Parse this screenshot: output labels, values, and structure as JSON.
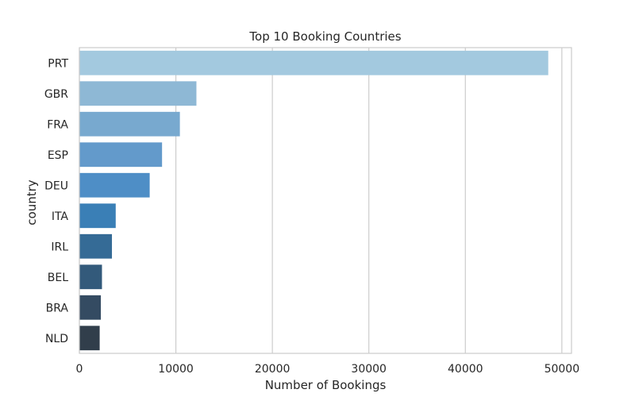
{
  "chart_data": {
    "type": "bar",
    "orientation": "horizontal",
    "title": "Top 10 Booking Countries",
    "xlabel": "Number of Bookings",
    "ylabel": "country",
    "categories": [
      "PRT",
      "GBR",
      "FRA",
      "ESP",
      "DEU",
      "ITA",
      "IRL",
      "BEL",
      "BRA",
      "NLD"
    ],
    "values": [
      48590,
      12129,
      10415,
      8568,
      7287,
      3766,
      3375,
      2342,
      2224,
      2104
    ],
    "xlim": [
      0,
      51000
    ],
    "xticks": [
      0,
      10000,
      20000,
      30000,
      40000,
      50000
    ],
    "xtick_labels": [
      "0",
      "10000",
      "20000",
      "30000",
      "40000",
      "50000"
    ],
    "grid": "vertical",
    "colors": [
      "#a3c9df",
      "#8eb8d5",
      "#78a9cf",
      "#639acb",
      "#4e8ec6",
      "#3a7fb6",
      "#356b96",
      "#335a7b",
      "#344b62",
      "#313e4b"
    ]
  }
}
